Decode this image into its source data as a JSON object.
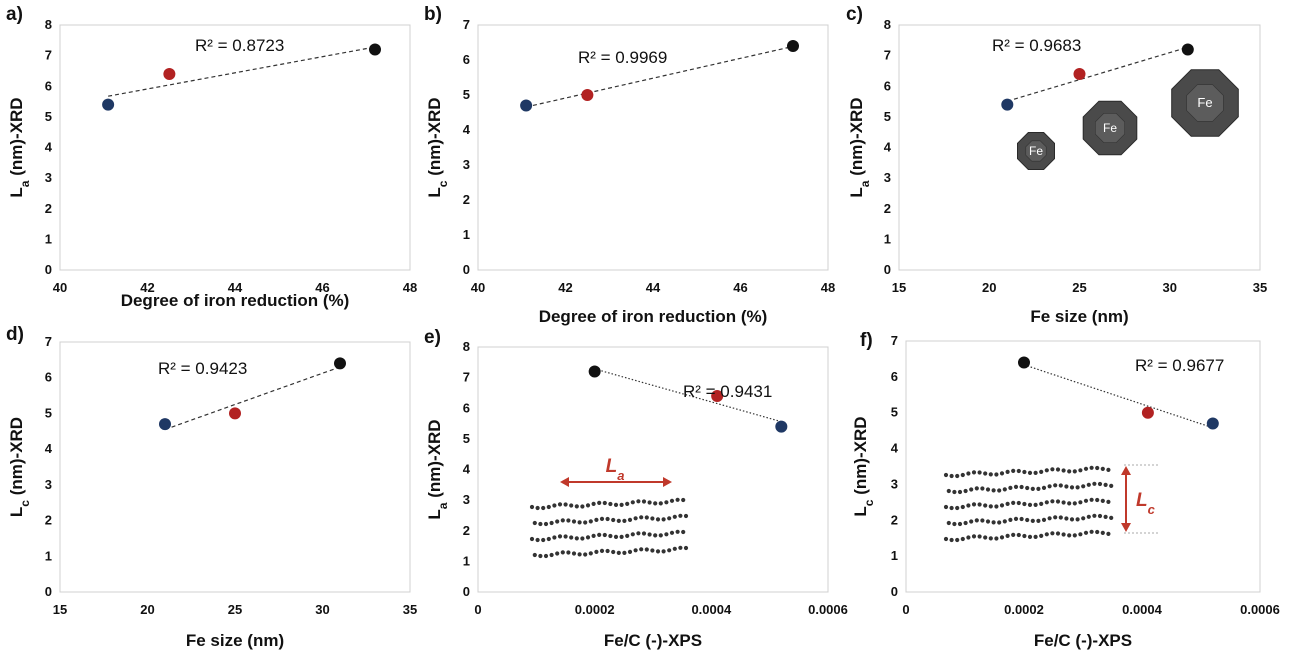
{
  "chart_data": [
    {
      "type": "scatter",
      "panel_label": "a)",
      "xlabel": "Degree of iron reduction  (%)",
      "ylabel": "La (nm)-XRD",
      "ylabel_main": "L",
      "ylabel_sub": "a",
      "ylabel_rest": " (nm)-XRD",
      "xlim": [
        40,
        48
      ],
      "xticks": [
        40,
        42,
        44,
        46,
        48
      ],
      "ylim": [
        0,
        8
      ],
      "yticks": [
        0,
        1,
        2,
        3,
        4,
        5,
        6,
        7,
        8
      ],
      "x": [
        41.1,
        42.5,
        47.2
      ],
      "y": [
        5.4,
        6.4,
        7.2
      ],
      "colors": [
        "#1f3864",
        "#b22222",
        "#111111"
      ],
      "r2_label": "R² = 0.8723",
      "grid": false
    },
    {
      "type": "scatter",
      "panel_label": "b)",
      "xlabel": "Degree of iron reduction (%)",
      "ylabel": "Lc (nm)-XRD",
      "ylabel_main": "L",
      "ylabel_sub": "c",
      "ylabel_rest": " (nm)-XRD",
      "xlim": [
        40,
        48
      ],
      "xticks": [
        40,
        42,
        44,
        46,
        48
      ],
      "ylim": [
        0,
        7
      ],
      "yticks": [
        0,
        1,
        2,
        3,
        4,
        5,
        6,
        7
      ],
      "x": [
        41.1,
        42.5,
        47.2
      ],
      "y": [
        4.7,
        5.0,
        6.4
      ],
      "colors": [
        "#1f3864",
        "#b22222",
        "#111111"
      ],
      "r2_label": "R² = 0.9969",
      "grid": false
    },
    {
      "type": "scatter",
      "panel_label": "c)",
      "xlabel": "Fe  size (nm)",
      "ylabel": "La (nm)-XRD",
      "ylabel_main": "L",
      "ylabel_sub": "a",
      "ylabel_rest": " (nm)-XRD",
      "xlim": [
        15,
        35
      ],
      "xticks": [
        15,
        20,
        25,
        30,
        35
      ],
      "ylim": [
        0,
        8
      ],
      "yticks": [
        0,
        1,
        2,
        3,
        4,
        5,
        6,
        7,
        8
      ],
      "x": [
        21,
        25,
        31
      ],
      "y": [
        5.4,
        6.4,
        7.2
      ],
      "colors": [
        "#1f3864",
        "#b22222",
        "#111111"
      ],
      "r2_label": "R² = 0.9683",
      "inset_labels": [
        "Fe",
        "Fe",
        "Fe"
      ],
      "grid": false
    },
    {
      "type": "scatter",
      "panel_label": "d)",
      "xlabel": "Fe  size (nm)",
      "ylabel": "Lc (nm)-XRD",
      "ylabel_main": "L",
      "ylabel_sub": "c",
      "ylabel_rest": " (nm)-XRD",
      "xlim": [
        15,
        35
      ],
      "xticks": [
        15,
        20,
        25,
        30,
        35
      ],
      "ylim": [
        0,
        7
      ],
      "yticks": [
        0,
        1,
        2,
        3,
        4,
        5,
        6,
        7
      ],
      "x": [
        21,
        25,
        31
      ],
      "y": [
        4.7,
        5.0,
        6.4
      ],
      "colors": [
        "#1f3864",
        "#b22222",
        "#111111"
      ],
      "r2_label": "R² = 0.9423",
      "grid": false
    },
    {
      "type": "scatter",
      "panel_label": "e)",
      "xlabel": "Fe/C (-)-XPS",
      "ylabel": "La (nm)-XRD",
      "ylabel_main": "L",
      "ylabel_sub": "a",
      "ylabel_rest": " (nm)-XRD",
      "xlim": [
        0,
        0.0006
      ],
      "xticks": [
        0,
        0.0002,
        0.0004,
        0.0006
      ],
      "xtick_labels": [
        "0",
        "0.0002",
        "0.0004",
        "0.0006"
      ],
      "ylim": [
        0,
        8
      ],
      "yticks": [
        0,
        1,
        2,
        3,
        4,
        5,
        6,
        7,
        8
      ],
      "x": [
        0.0002,
        0.00041,
        0.00052
      ],
      "y": [
        7.2,
        6.4,
        5.4
      ],
      "colors": [
        "#111111",
        "#b22222",
        "#1f3864"
      ],
      "r2_label": "R² = 0.9431",
      "inset_main": "L",
      "inset_sub": "a",
      "grid": false
    },
    {
      "type": "scatter",
      "panel_label": "f)",
      "xlabel": "Fe/C (-)-XPS",
      "ylabel": "Lc (nm)-XRD",
      "ylabel_main": "L",
      "ylabel_sub": "c",
      "ylabel_rest": " (nm)-XRD",
      "xlim": [
        0,
        0.0006
      ],
      "xticks": [
        0,
        0.0002,
        0.0004,
        0.0006
      ],
      "xtick_labels": [
        "0",
        "0.0002",
        "0.0004",
        "0.0006"
      ],
      "ylim": [
        0,
        7
      ],
      "yticks": [
        0,
        1,
        2,
        3,
        4,
        5,
        6,
        7
      ],
      "x": [
        0.0002,
        0.00041,
        0.00052
      ],
      "y": [
        6.4,
        5.0,
        4.7
      ],
      "colors": [
        "#111111",
        "#b22222",
        "#1f3864"
      ],
      "r2_label": "R² = 0.9677",
      "inset_main": "L",
      "inset_sub": "c",
      "grid": false
    }
  ]
}
